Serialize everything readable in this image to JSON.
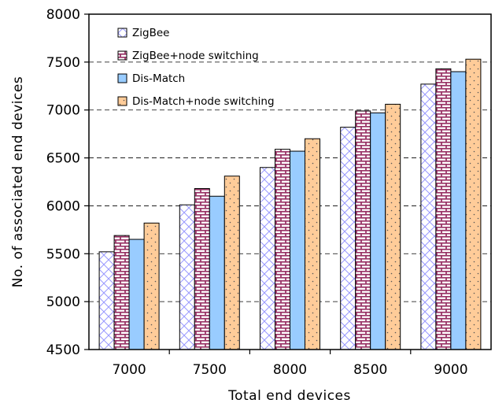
{
  "chart_data": {
    "type": "bar",
    "title": "",
    "xlabel": "Total end devices",
    "ylabel": "No. of associated end devices",
    "categories": [
      "7000",
      "7500",
      "8000",
      "8500",
      "9000"
    ],
    "ylim": [
      4500,
      8000
    ],
    "yticks": [
      "4500",
      "5000",
      "5500",
      "6000",
      "6500",
      "7000",
      "7500",
      "8000"
    ],
    "grid": "dashed horizontal",
    "legend_position": "top-left",
    "series": [
      {
        "name": "ZigBee",
        "values": [
          5520,
          6010,
          6400,
          6820,
          7270
        ],
        "pattern": "crosshatch",
        "color": "#9999ff"
      },
      {
        "name": "ZigBee+node switching",
        "values": [
          5690,
          6180,
          6590,
          6990,
          7430
        ],
        "pattern": "brick",
        "color": "#993366"
      },
      {
        "name": "Dis-Match",
        "values": [
          5650,
          6100,
          6570,
          6970,
          7400
        ],
        "pattern": "solid",
        "color": "#99ccff"
      },
      {
        "name": "Dis-Match+node switching",
        "values": [
          5820,
          6310,
          6700,
          7060,
          7530
        ],
        "pattern": "dotted",
        "color": "#ffcc99"
      }
    ]
  }
}
